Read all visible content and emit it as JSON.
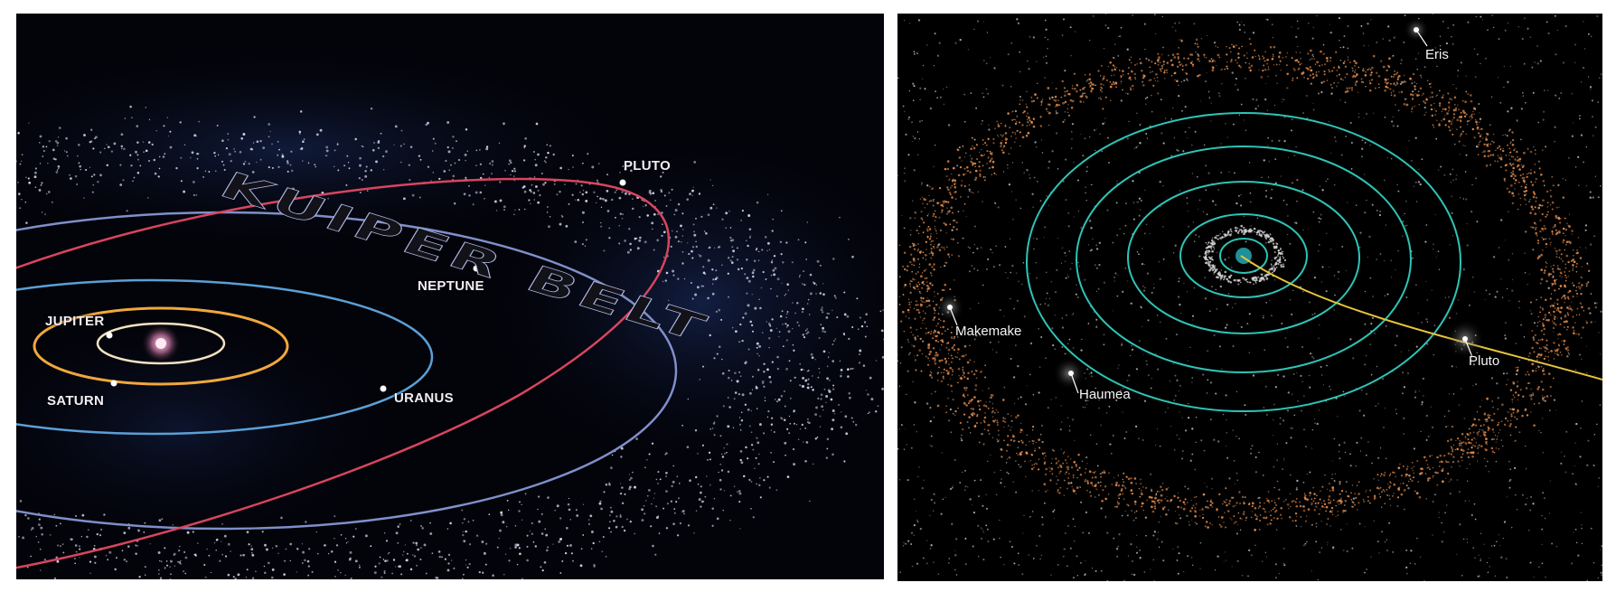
{
  "left_panel": {
    "belt_title": "KUIPER BELT",
    "labels": {
      "pluto": "PLUTO",
      "neptune": "NEPTUNE",
      "jupiter": "JUPITER",
      "saturn": "SATURN",
      "uranus": "URANUS"
    },
    "colors": {
      "pluto_orbit": "#d8455f",
      "neptune_orbit": "#7f8fc9",
      "uranus_orbit": "#5aa0d6",
      "saturn_orbit": "#f0a83c",
      "jupiter_orbit": "#f3e2c2",
      "belt_particles": "#d9dbf2",
      "nebula": "#1c2f6a"
    }
  },
  "right_panel": {
    "labels": {
      "eris": "Eris",
      "makemake": "Makemake",
      "haumea": "Haumea",
      "pluto": "Pluto"
    },
    "colors": {
      "planet_orbits": "#2ec4b6",
      "pluto_path": "#e6c33c",
      "belt_particles": "#e08a4a",
      "scattered_particles": "#d8d8d8"
    }
  }
}
